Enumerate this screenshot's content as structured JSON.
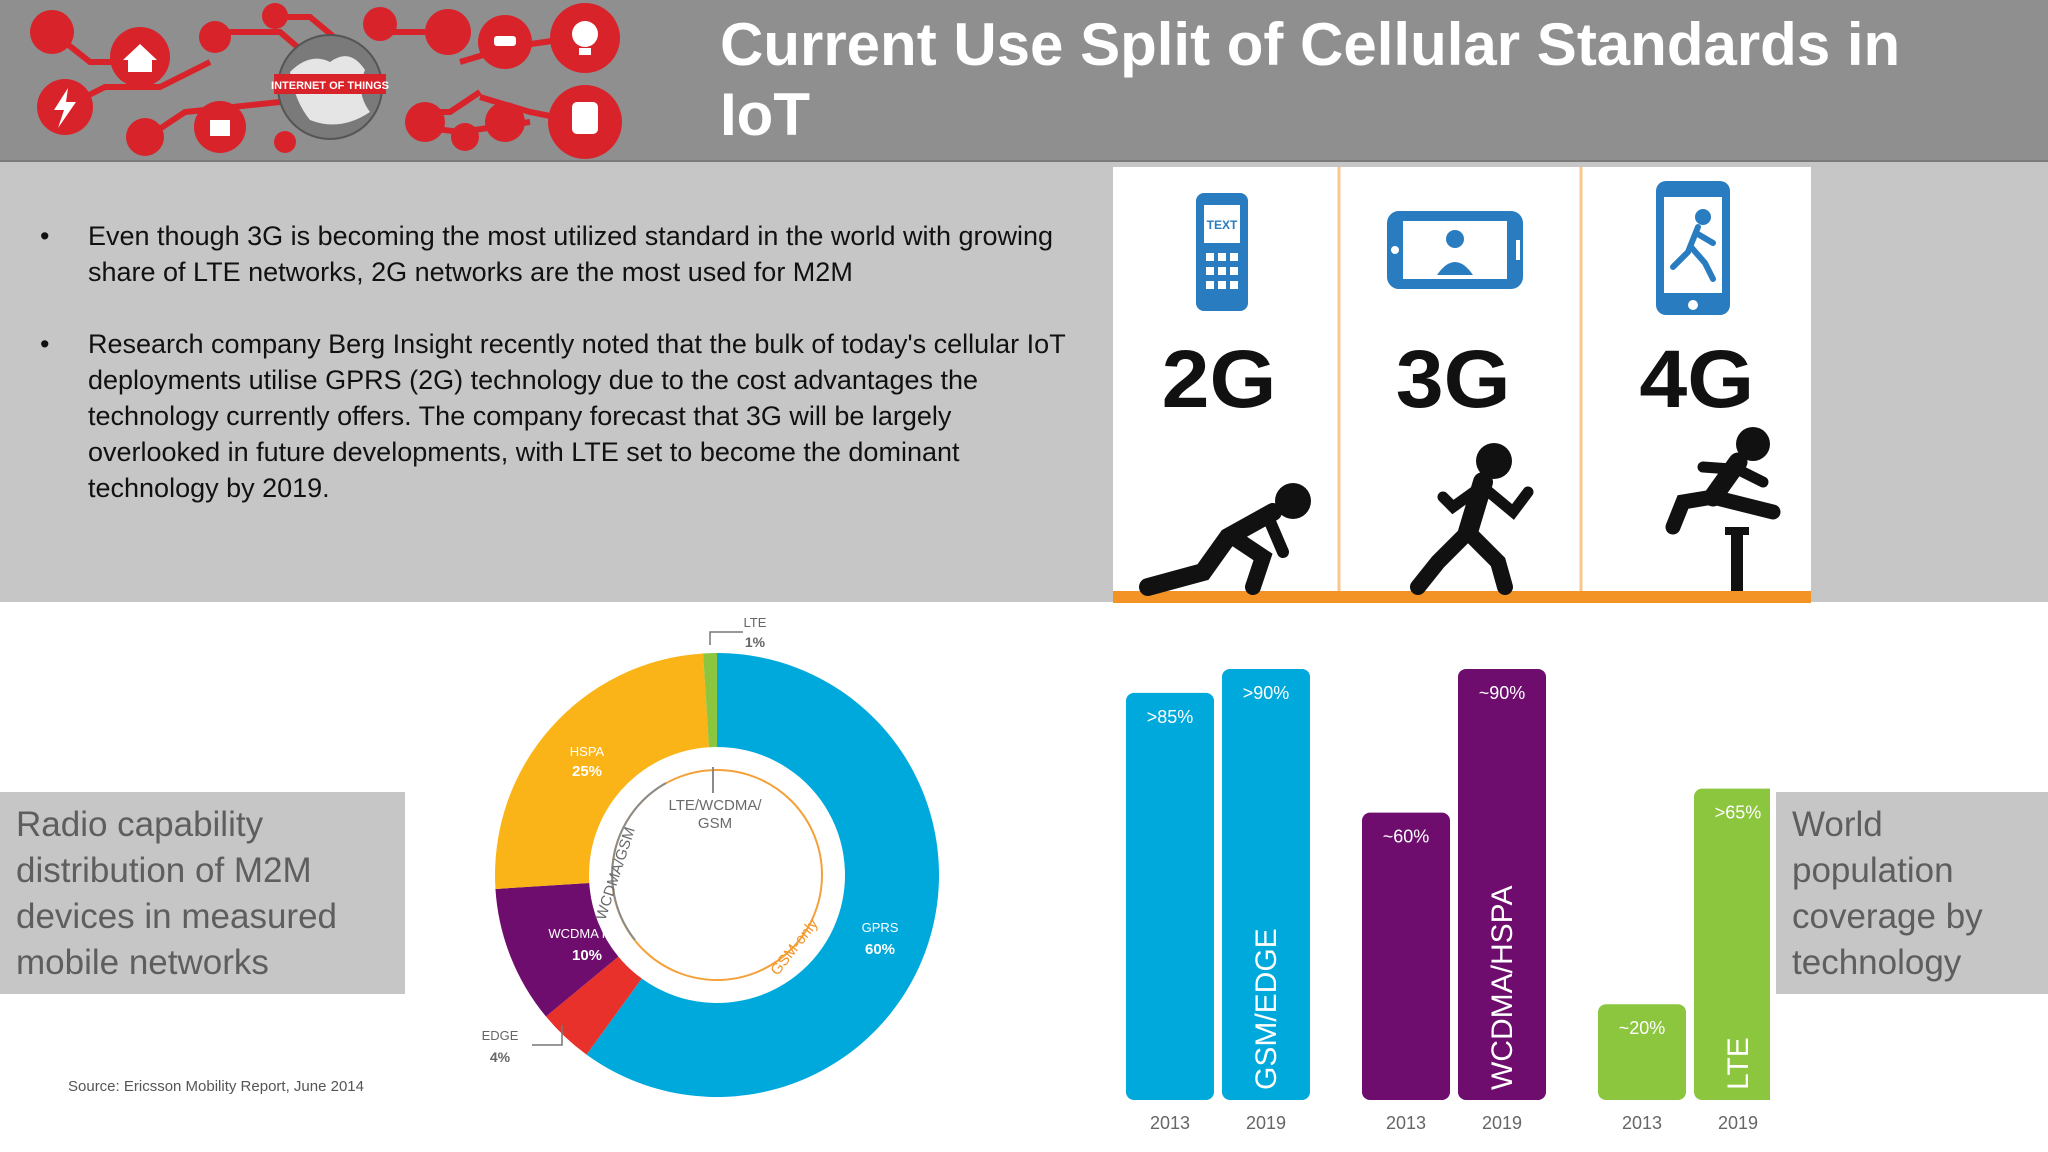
{
  "header": {
    "title": "Current Use Split of Cellular Standards in IoT",
    "logo_text": "INTERNET OF THINGS",
    "colors": {
      "bg": "#8f8f8f",
      "logo_red": "#d9232a"
    }
  },
  "bullets": [
    "Even though 3G is becoming the most utilized standard in the world with growing share of LTE networks, 2G networks are the most used for M2M",
    "Research company Berg Insight recently noted that the bulk of today's cellular IoT deployments utilise GPRS (2G) technology due to the cost advantages the technology currently offers. The company forecast that 3G will be largely overlooked in future developments, with LTE set to become the dominant technology by 2019."
  ],
  "generations": [
    {
      "label": "2G",
      "phone_icon": "text-phone-icon",
      "runner_icon": "crouching-runner-icon",
      "screen_text": "TEXT"
    },
    {
      "label": "3G",
      "phone_icon": "video-phone-icon",
      "runner_icon": "running-figure-icon"
    },
    {
      "label": "4G",
      "phone_icon": "smartphone-runner-icon",
      "runner_icon": "hurdler-icon"
    }
  ],
  "left_caption": "Radio capability distribution of M2M devices in measured mobile networks",
  "right_caption": "World population coverage by technology",
  "source": "Source: Ericsson Mobility Report, June 2014",
  "chart_data": [
    {
      "type": "pie",
      "slices": [
        {
          "label": "GPRS",
          "value": 60,
          "display": "60%",
          "color": "#00a9dc"
        },
        {
          "label": "EDGE",
          "value": 4,
          "display": "4%",
          "color": "#e8312a"
        },
        {
          "label": "WCDMA R99",
          "value": 10,
          "display": "10%",
          "color": "#6e0d6e"
        },
        {
          "label": "HSPA",
          "value": 25,
          "display": "25%",
          "color": "#fbb417"
        },
        {
          "label": "LTE",
          "value": 1,
          "display": "1%",
          "color": "#8cc63f"
        }
      ],
      "inner_labels": {
        "center": [
          "LTE/WCDMA/",
          "GSM"
        ],
        "arc_left": "WCDMA/GSM",
        "arc_right": "GSM-only"
      }
    },
    {
      "type": "bar",
      "groups": [
        {
          "name": "GSM/EDGE",
          "color": "#00a9dc",
          "bars": [
            {
              "year": "2013",
              "value": 85,
              "label": ">85%"
            },
            {
              "year": "2019",
              "value": 90,
              "label": ">90%"
            }
          ]
        },
        {
          "name": "WCDMA/HSPA",
          "color": "#6e0d6e",
          "bars": [
            {
              "year": "2013",
              "value": 60,
              "label": "~60%"
            },
            {
              "year": "2019",
              "value": 90,
              "label": "~90%"
            }
          ]
        },
        {
          "name": "LTE",
          "color": "#8cc63f",
          "bars": [
            {
              "year": "2013",
              "value": 20,
              "label": "~20%"
            },
            {
              "year": "2019",
              "value": 65,
              "label": ">65%"
            }
          ]
        }
      ],
      "ylim": [
        0,
        100
      ]
    }
  ]
}
